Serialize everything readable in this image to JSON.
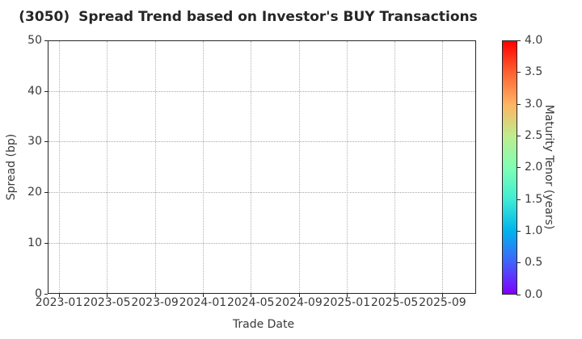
{
  "title": {
    "code": "(3050)",
    "text": "Spread Trend based on Investor's BUY Transactions"
  },
  "chart_data": {
    "type": "scatter",
    "title": "(3050)  Spread Trend based on Investor's BUY Transactions",
    "xlabel": "Trade Date",
    "ylabel": "Spread (bp)",
    "x_ticks": [
      "2023-01",
      "2023-05",
      "2023-09",
      "2024-01",
      "2024-05",
      "2024-09",
      "2025-01",
      "2025-05",
      "2025-09"
    ],
    "y_ticks": [
      "0",
      "10",
      "20",
      "30",
      "40",
      "50"
    ],
    "ylim": [
      0,
      50
    ],
    "grid": true,
    "grid_style": "dotted",
    "points": [],
    "colorbar": {
      "label": "Maturity Tenor (years)",
      "ticks": [
        "0.0",
        "0.5",
        "1.0",
        "1.5",
        "2.0",
        "2.5",
        "3.0",
        "3.5",
        "4.0"
      ],
      "range": [
        0,
        4
      ],
      "colormap": "rainbow",
      "stops": [
        {
          "value": 0.0,
          "color": "#8000ff"
        },
        {
          "value": 0.5,
          "color": "#4062fa"
        },
        {
          "value": 1.0,
          "color": "#00b4ec"
        },
        {
          "value": 1.5,
          "color": "#40ecd4"
        },
        {
          "value": 2.0,
          "color": "#80ffb4"
        },
        {
          "value": 2.5,
          "color": "#bfec8e"
        },
        {
          "value": 3.0,
          "color": "#ffb462"
        },
        {
          "value": 3.5,
          "color": "#ff6232"
        },
        {
          "value": 4.0,
          "color": "#ff0000"
        }
      ]
    },
    "text_color": "#3a3a3a",
    "axis_color": "#262626",
    "grid_color": "#b3b3b3",
    "background": "#ffffff"
  }
}
